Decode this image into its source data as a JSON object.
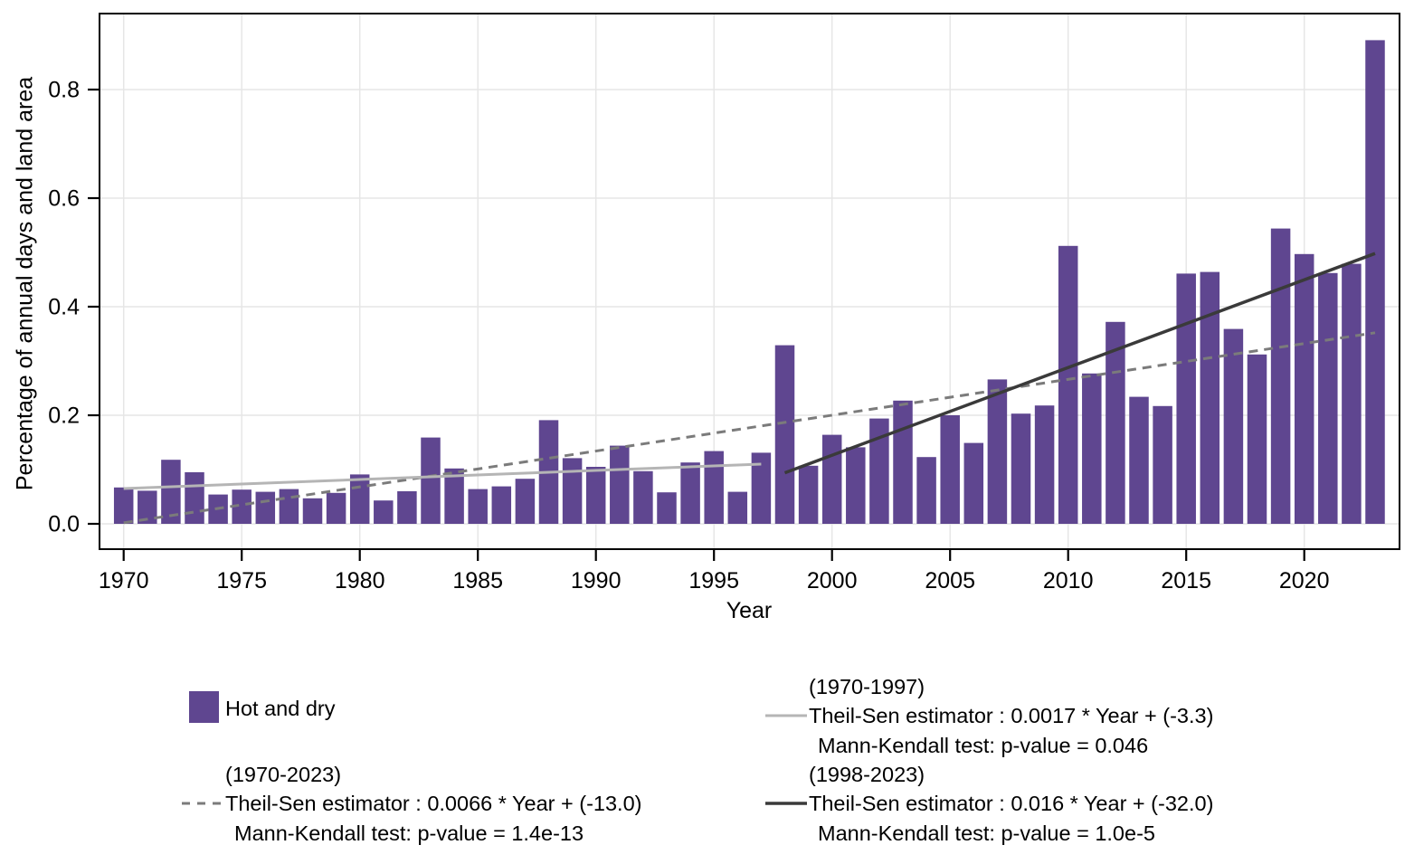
{
  "axes": {
    "x_label": "Year",
    "y_label": "Percentage of annual days and land area"
  },
  "legend": {
    "series": {
      "label": "Hot and dry",
      "swatch_color": "#5F4690"
    },
    "dashed": {
      "range": "(1970-2023)",
      "equation": "Theil-Sen estimator : 0.0066 * Year + (-13.0)",
      "pvalue": "Mann-Kendall test: p-value = 1.4e-13"
    },
    "solid_light": {
      "range": "(1970-1997)",
      "equation": "Theil-Sen estimator : 0.0017 * Year + (-3.3)",
      "pvalue": "Mann-Kendall test: p-value = 0.046"
    },
    "solid_dark": {
      "range": "(1998-2023)",
      "equation": "Theil-Sen estimator : 0.016 * Year + (-32.0)",
      "pvalue": "Mann-Kendall test: p-value = 1.0e-5"
    }
  },
  "chart_data": {
    "type": "bar",
    "title": "",
    "xlabel": "Year",
    "ylabel": "Percentage of annual days and land area",
    "series_name": "Hot and dry",
    "categories": [
      1970,
      1971,
      1972,
      1973,
      1974,
      1975,
      1976,
      1977,
      1978,
      1979,
      1980,
      1981,
      1982,
      1983,
      1984,
      1985,
      1986,
      1987,
      1988,
      1989,
      1990,
      1991,
      1992,
      1993,
      1994,
      1995,
      1996,
      1997,
      1998,
      1999,
      2000,
      2001,
      2002,
      2003,
      2004,
      2005,
      2006,
      2007,
      2008,
      2009,
      2010,
      2011,
      2012,
      2013,
      2014,
      2015,
      2016,
      2017,
      2018,
      2019,
      2020,
      2021,
      2022,
      2023
    ],
    "values": [
      0.067,
      0.061,
      0.118,
      0.095,
      0.054,
      0.063,
      0.059,
      0.064,
      0.047,
      0.057,
      0.091,
      0.043,
      0.06,
      0.159,
      0.102,
      0.064,
      0.069,
      0.083,
      0.191,
      0.121,
      0.105,
      0.144,
      0.097,
      0.058,
      0.113,
      0.134,
      0.059,
      0.131,
      0.329,
      0.107,
      0.164,
      0.141,
      0.194,
      0.227,
      0.123,
      0.2,
      0.149,
      0.266,
      0.203,
      0.218,
      0.512,
      0.277,
      0.372,
      0.234,
      0.217,
      0.461,
      0.464,
      0.359,
      0.312,
      0.544,
      0.497,
      0.462,
      0.479,
      0.891
    ],
    "bar_color": "#5F4690",
    "grid": true,
    "grid_color": "#E6E6E6",
    "xlim": [
      1969.0,
      2024.0
    ],
    "ylim": [
      -0.048,
      0.938
    ],
    "x_tick_values": [
      1970,
      1975,
      1980,
      1985,
      1990,
      1995,
      2000,
      2005,
      2010,
      2015,
      2020
    ],
    "y_tick_values": [
      0,
      0.2,
      0.4,
      0.6,
      0.8
    ],
    "y_tick_labels": [
      "0.0",
      "0.2",
      "0.4",
      "0.6",
      "0.8"
    ],
    "legend_position": "bottom",
    "trend_lines": [
      {
        "name": "theil-sen-1970-2023",
        "period": "(1970-2023)",
        "style": "dashed",
        "color": "#7B7B7B",
        "width": 3,
        "slope": 0.0066,
        "intercept": -13.0,
        "p_value": "1.4e-13",
        "x": [
          1970,
          2023
        ],
        "y": [
          0.002,
          0.352
        ]
      },
      {
        "name": "theil-sen-1970-1997",
        "period": "(1970-1997)",
        "style": "solid",
        "color": "#B5B5B5",
        "width": 3,
        "slope": 0.0017,
        "intercept": -3.3,
        "p_value": "0.046",
        "x": [
          1970,
          1997
        ],
        "y": [
          0.065,
          0.11
        ]
      },
      {
        "name": "theil-sen-1998-2023",
        "period": "(1998-2023)",
        "style": "solid",
        "color": "#3A3A3A",
        "width": 3.5,
        "slope": 0.016,
        "intercept": -32.0,
        "p_value": "1.0e-5",
        "x": [
          1998,
          2023
        ],
        "y": [
          0.094,
          0.498
        ]
      }
    ]
  }
}
